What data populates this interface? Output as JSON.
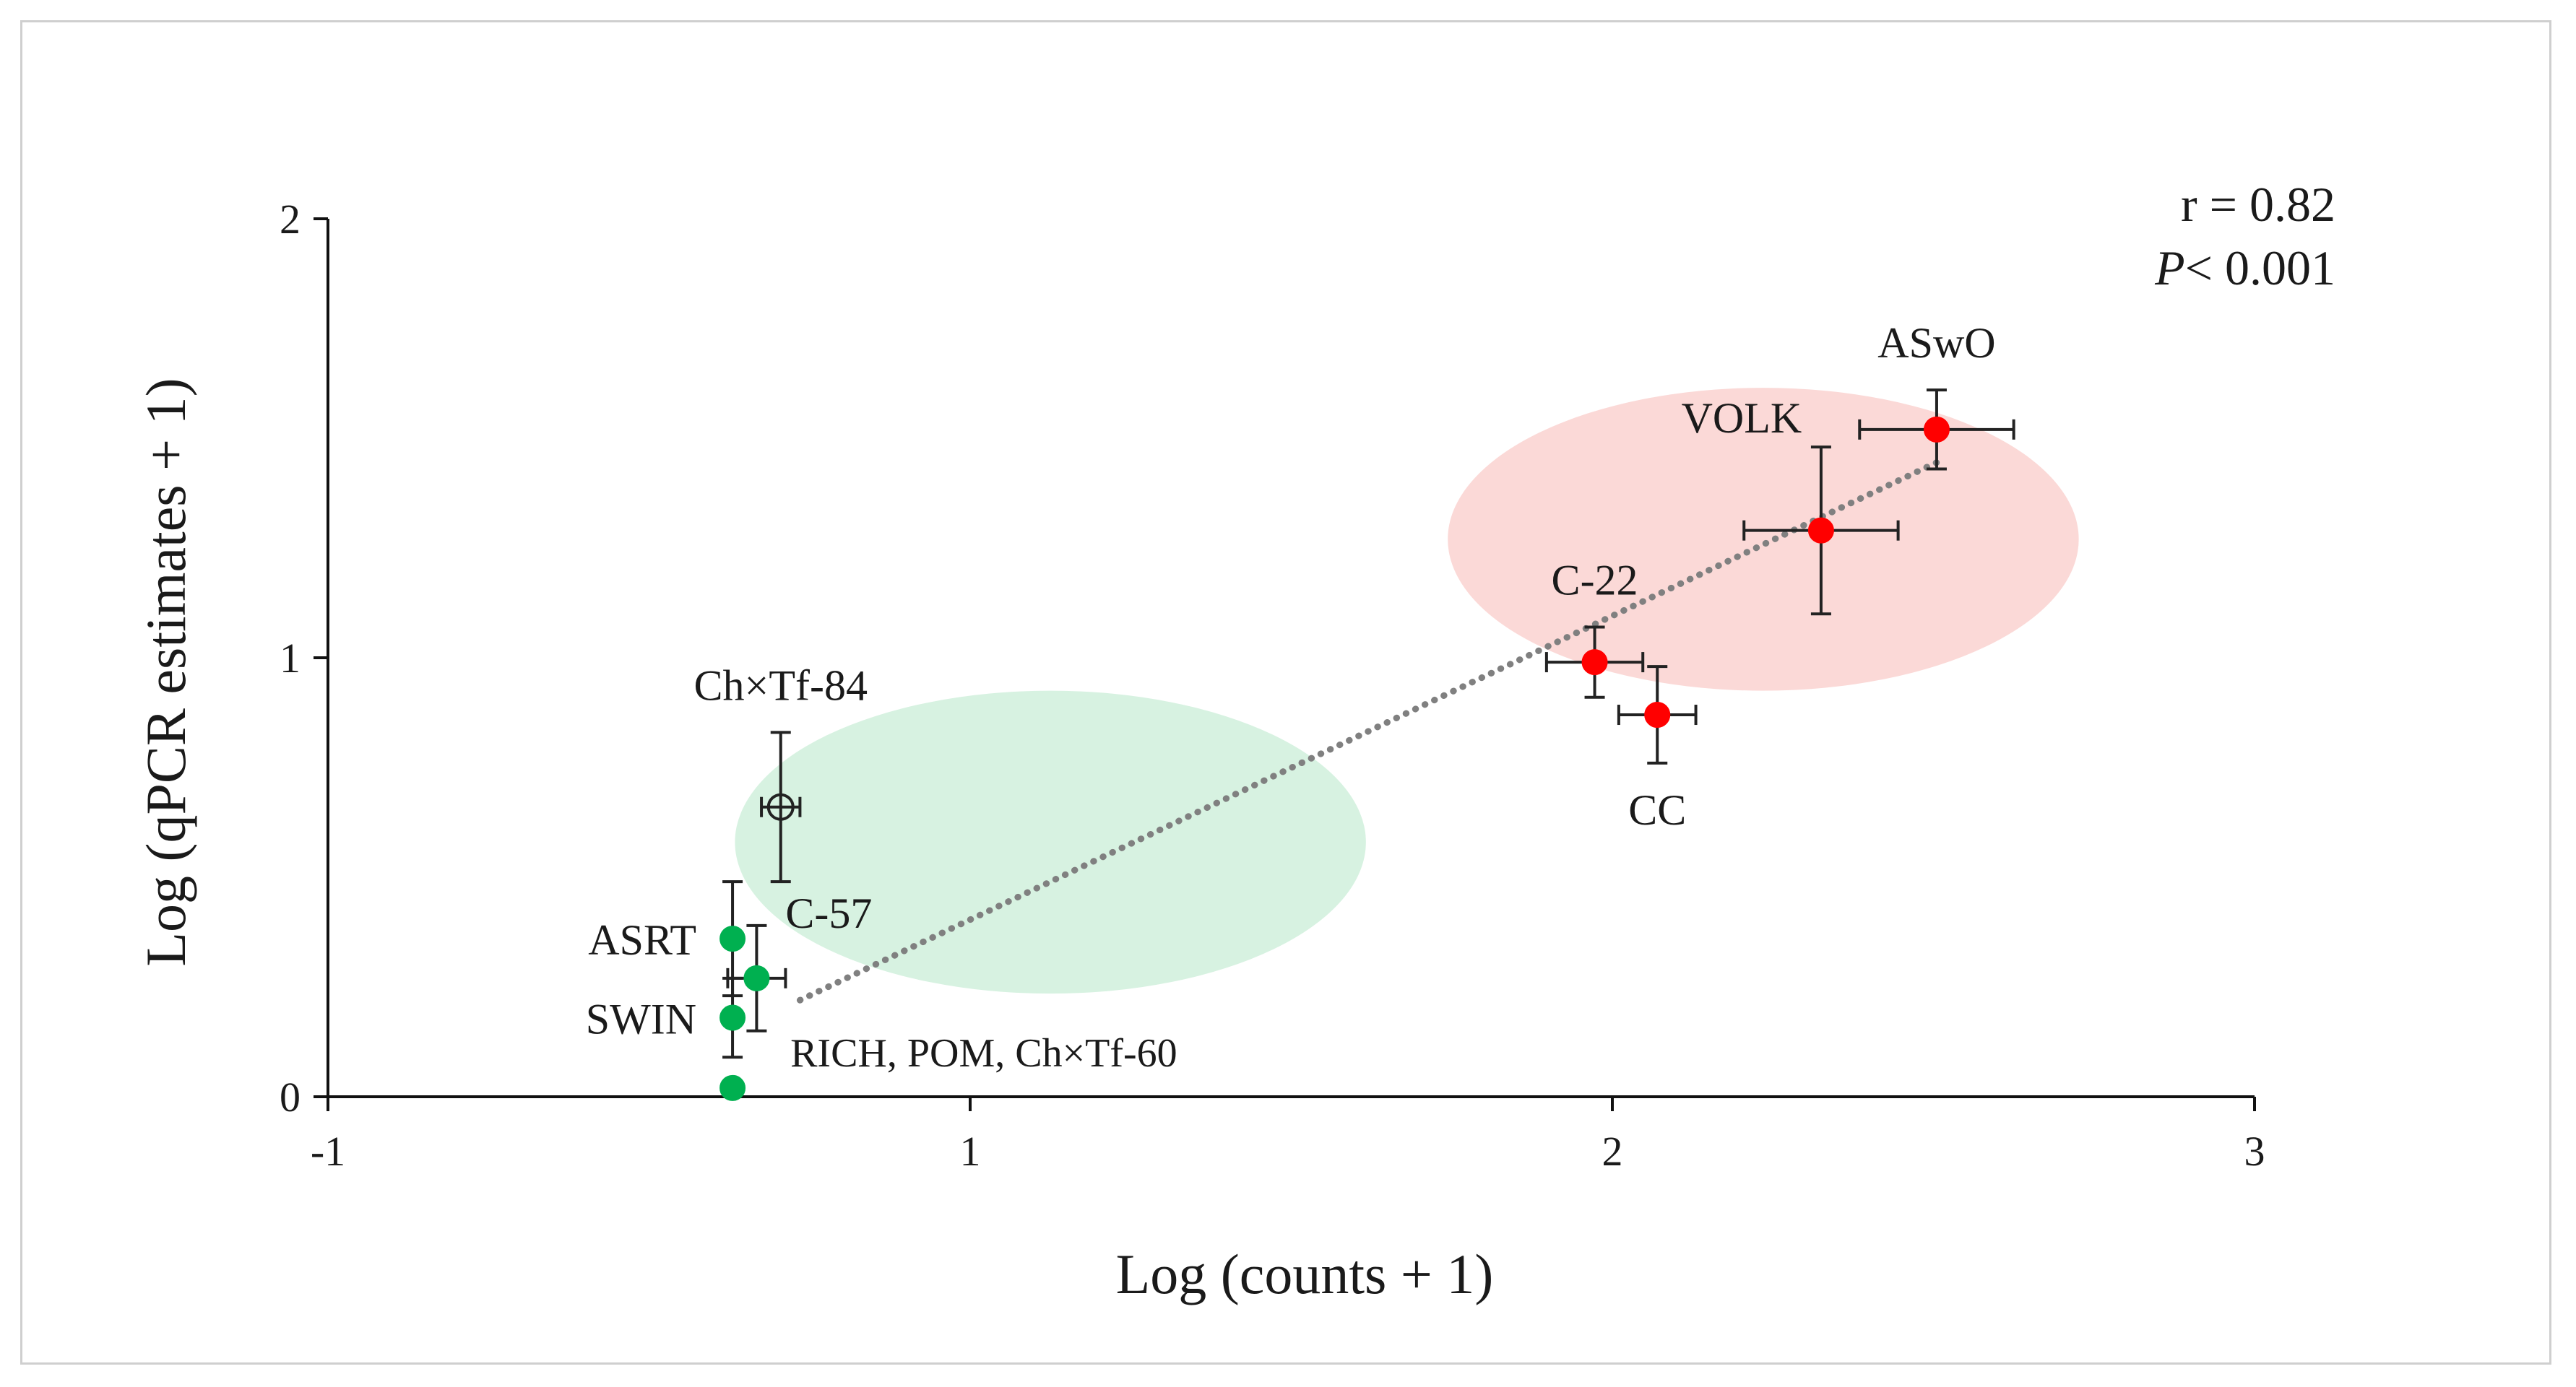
{
  "chart_data": {
    "type": "scatter",
    "xlabel": "Log (counts + 1)",
    "ylabel": "Log (qPCR estimates + 1)",
    "xlim": [
      -1,
      3
    ],
    "ylim": [
      0,
      2
    ],
    "x_ticks": [
      "-1",
      "1",
      "2",
      "3"
    ],
    "y_ticks": [
      "0",
      "1",
      "2"
    ],
    "grid": false,
    "stats": {
      "r_text": "r = 0.82",
      "p_symbol": "P",
      "p_text": "< 0.001"
    },
    "trendline": {
      "style": "dotted",
      "color": "#808080",
      "from": [
        -0.02,
        0.22
      ],
      "to": [
        2.35,
        1.45
      ]
    },
    "groups": [
      {
        "color": "#d7f2e1",
        "center": [
          0.5,
          0.58
        ],
        "radii": [
          1.31,
          0.69
        ]
      },
      {
        "color": "#fbd9d7",
        "center": [
          1.98,
          1.27
        ],
        "radii": [
          1.31,
          0.69
        ]
      }
    ],
    "points": [
      {
        "label": "ASwO",
        "x": 2.34,
        "y": 1.52,
        "xerr": 0.16,
        "yerr": 0.09,
        "color": "#ff0000",
        "filled": true,
        "label_pos": "above"
      },
      {
        "label": "VOLK",
        "x": 2.1,
        "y": 1.29,
        "xerr": 0.16,
        "yerr": 0.19,
        "color": "#ff0000",
        "filled": true,
        "label_pos": "above-left"
      },
      {
        "label": "C-22",
        "x": 1.63,
        "y": 0.99,
        "xerr": 0.1,
        "yerr": 0.08,
        "color": "#ff0000",
        "filled": true,
        "label_pos": "above"
      },
      {
        "label": "CC",
        "x": 1.76,
        "y": 0.87,
        "xerr": 0.08,
        "yerr": 0.11,
        "color": "#ff0000",
        "filled": true,
        "label_pos": "below"
      },
      {
        "label": "Ch×Tf-84",
        "x": -0.06,
        "y": 0.66,
        "xerr": 0.04,
        "yerr": 0.17,
        "color": "#ffffff",
        "filled": false,
        "label_pos": "above"
      },
      {
        "label": "C-57",
        "x": -0.11,
        "y": 0.27,
        "xerr": 0.06,
        "yerr": 0.12,
        "color": "#00b050",
        "filled": true,
        "label_pos": "above-right"
      },
      {
        "label": "ASRT",
        "x": -0.16,
        "y": 0.36,
        "xerr": 0.0,
        "yerr": 0.13,
        "color": "#00b050",
        "filled": true,
        "label_pos": "left"
      },
      {
        "label": "SWIN",
        "x": -0.16,
        "y": 0.18,
        "xerr": 0.0,
        "yerr": 0.09,
        "color": "#00b050",
        "filled": true,
        "label_pos": "left"
      },
      {
        "label": "RICH, POM, Ch×Tf-60",
        "x": -0.16,
        "y": 0.02,
        "xerr": 0.0,
        "yerr": 0.0,
        "color": "#00b050",
        "filled": true,
        "label_pos": "above-right"
      }
    ]
  }
}
